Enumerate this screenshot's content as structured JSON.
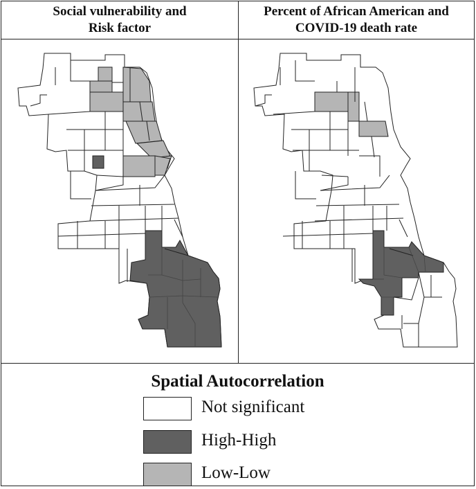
{
  "panels": [
    {
      "title": "Social vulnerability and\nRisk factor"
    },
    {
      "title": "Percent of African American and\nCOVID-19 death rate"
    }
  ],
  "legend": {
    "title": "Spatial Autocorrelation",
    "items": [
      {
        "label": "Not significant",
        "color": "#ffffff"
      },
      {
        "label": "High-High",
        "color": "#606060"
      },
      {
        "label": "Low-Low",
        "color": "#b5b5b5"
      }
    ]
  },
  "colors": {
    "border": "#222222",
    "not_significant": "#ffffff",
    "high_high": "#606060",
    "low_low": "#b5b5b5"
  }
}
